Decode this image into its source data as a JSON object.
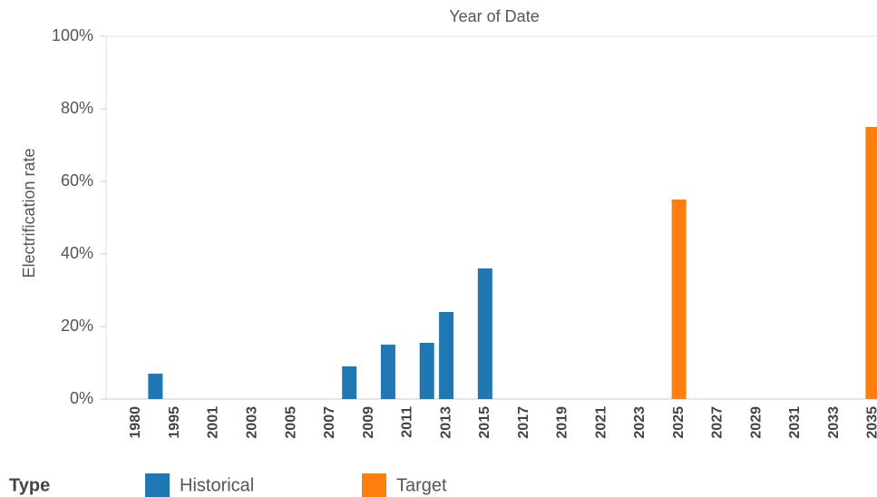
{
  "chart_data": {
    "type": "bar",
    "title": "Year of Date",
    "y_label": "Electrification rate",
    "legend_title": "Type",
    "categories": [
      "1980",
      null,
      "1995",
      null,
      "2001",
      null,
      "2003",
      null,
      "2005",
      null,
      "2007",
      null,
      "2009",
      null,
      "2011",
      null,
      "2013",
      null,
      "2015",
      null,
      "2017",
      null,
      "2019",
      null,
      "2021",
      null,
      "2023",
      null,
      "2025",
      null,
      "2027",
      null,
      "2029",
      null,
      "2031",
      null,
      "2033",
      null,
      "2035"
    ],
    "series": [
      {
        "name": "Historical",
        "color": "#1f77b4",
        "values": [
          null,
          7,
          null,
          null,
          null,
          null,
          null,
          null,
          null,
          null,
          null,
          9,
          null,
          15,
          null,
          15.5,
          24,
          null,
          36,
          null,
          null,
          null,
          null,
          null,
          null,
          null,
          null,
          null,
          null,
          null,
          null,
          null,
          null,
          null,
          null,
          null,
          null,
          null,
          null
        ]
      },
      {
        "name": "Target",
        "color": "#ff7f0e",
        "values": [
          null,
          null,
          null,
          null,
          null,
          null,
          null,
          null,
          null,
          null,
          null,
          null,
          null,
          null,
          null,
          null,
          null,
          null,
          null,
          null,
          null,
          null,
          null,
          null,
          null,
          null,
          null,
          null,
          55,
          null,
          null,
          null,
          null,
          null,
          null,
          null,
          null,
          null,
          75
        ]
      }
    ],
    "ylim": [
      0,
      100
    ],
    "yticks": [
      {
        "value": 0,
        "label": "0%"
      },
      {
        "value": 20,
        "label": "20%"
      },
      {
        "value": 40,
        "label": "40%"
      },
      {
        "value": 60,
        "label": "60%"
      },
      {
        "value": 80,
        "label": "80%"
      },
      {
        "value": 100,
        "label": "100%"
      }
    ]
  }
}
